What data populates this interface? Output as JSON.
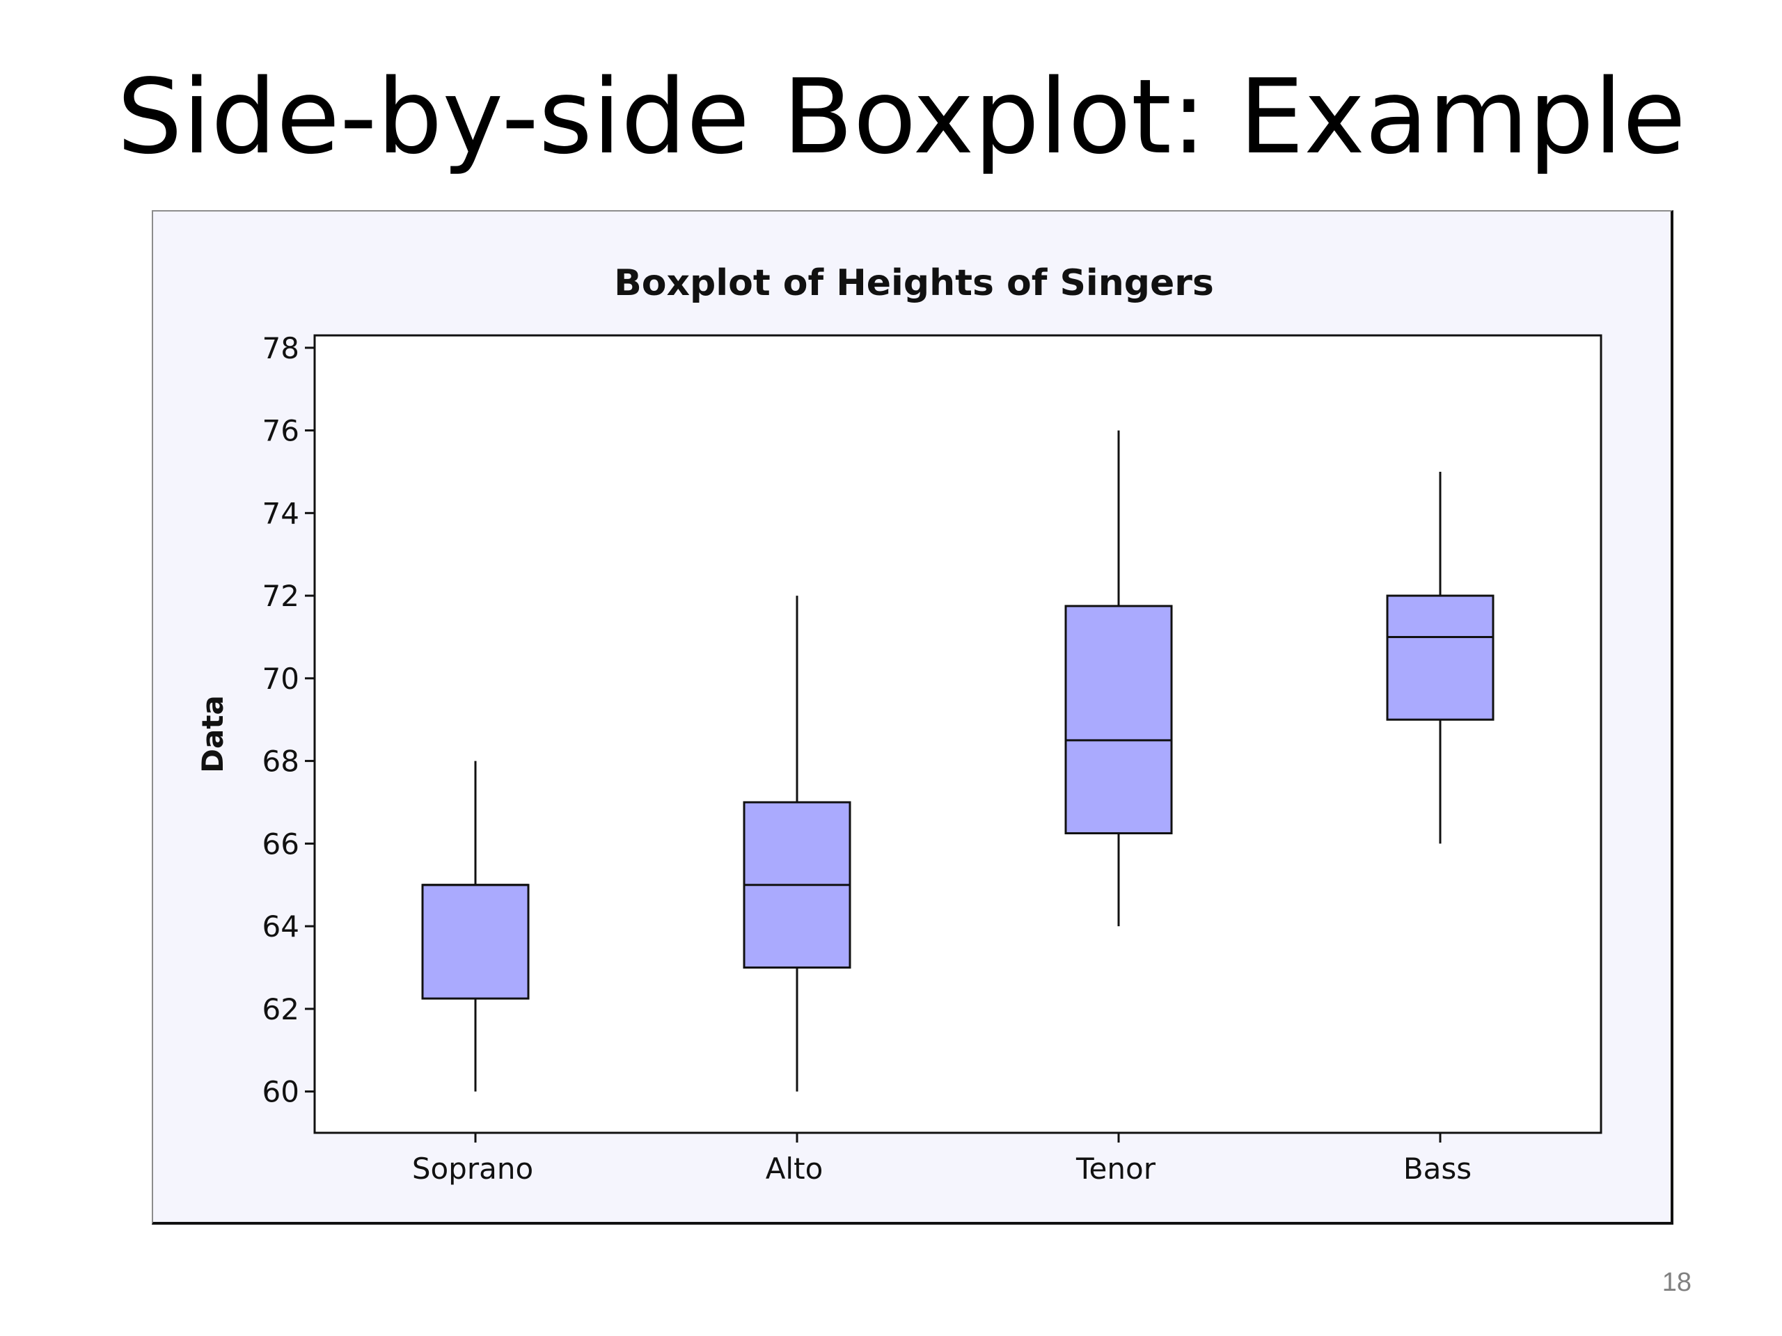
{
  "slide": {
    "title": "Side-by-side Boxplot: Example",
    "page_number": "18"
  },
  "chart_data": {
    "type": "boxplot",
    "title": "Boxplot of Heights of Singers",
    "xlabel": "",
    "ylabel": "Data",
    "categories": [
      "Soprano",
      "Alto",
      "Tenor",
      "Bass"
    ],
    "boxes": [
      {
        "category": "Soprano",
        "min": 60,
        "q1": 62.25,
        "median": 65,
        "q3": 65,
        "max": 68
      },
      {
        "category": "Alto",
        "min": 60,
        "q1": 63,
        "median": 65,
        "q3": 67,
        "max": 72
      },
      {
        "category": "Tenor",
        "min": 64,
        "q1": 66.25,
        "median": 68.5,
        "q3": 71.75,
        "max": 76
      },
      {
        "category": "Bass",
        "min": 66,
        "q1": 69,
        "median": 71,
        "q3": 72,
        "max": 75
      }
    ],
    "ylim": [
      59,
      78.3
    ],
    "yticks": [
      60,
      62,
      64,
      66,
      68,
      70,
      72,
      74,
      76,
      78
    ],
    "grid": false,
    "colors": {
      "box_fill": "#aaaafe",
      "box_stroke": "#111111",
      "plot_background": "#ffffff",
      "frame_background": "#f5f5fd"
    }
  }
}
